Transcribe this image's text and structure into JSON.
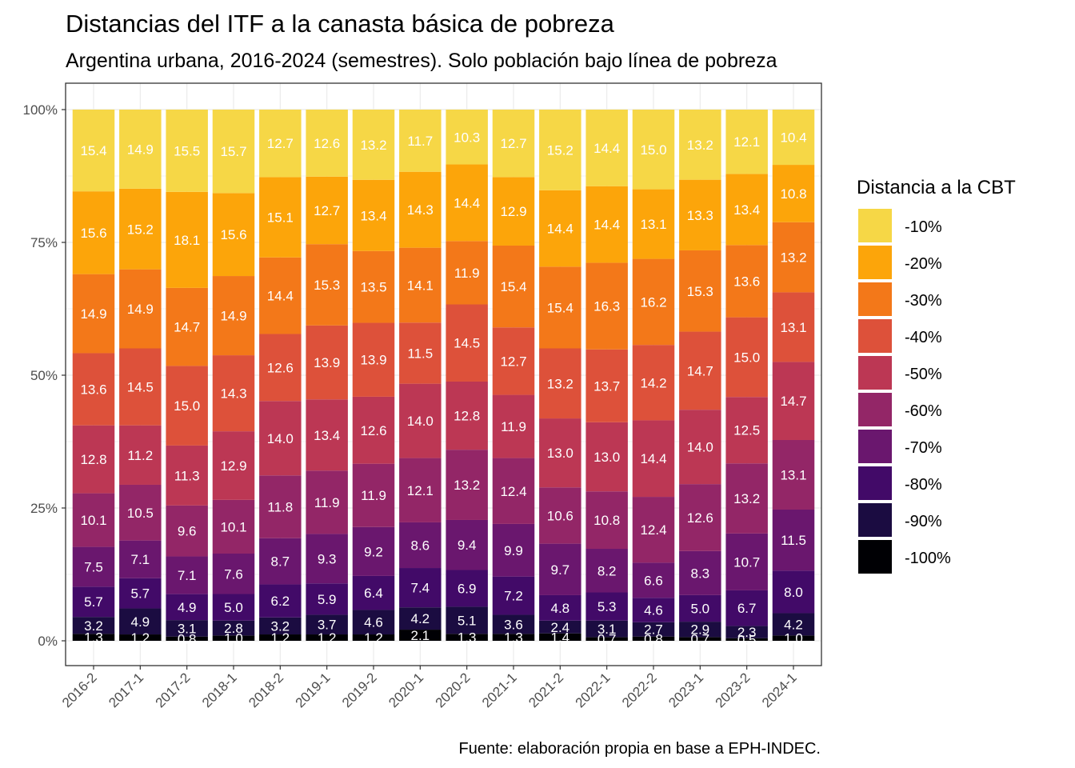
{
  "chart_data": {
    "type": "bar",
    "stacked": true,
    "normalized": true,
    "title": "Distancias del ITF a la canasta básica de pobreza",
    "subtitle": "Argentina urbana, 2016-2024 (semestres). Solo población bajo línea de pobreza",
    "caption": "Fuente: elaboración propia en base a EPH-INDEC.",
    "ylim": [
      0,
      100
    ],
    "y_ticks": [
      "0%",
      "25%",
      "50%",
      "75%",
      "100%"
    ],
    "grid": true,
    "categories": [
      "2016-2",
      "2017-1",
      "2017-2",
      "2018-1",
      "2018-2",
      "2019-1",
      "2019-2",
      "2020-1",
      "2020-2",
      "2021-1",
      "2021-2",
      "2022-1",
      "2022-2",
      "2023-1",
      "2023-2",
      "2024-1"
    ],
    "legend": {
      "title": "Distancia a la CBT",
      "placement": "right"
    },
    "series": [
      {
        "name": "-10%",
        "color": "#F6D746",
        "values": [
          15.4,
          14.9,
          15.5,
          15.7,
          12.7,
          12.6,
          13.2,
          11.7,
          10.3,
          12.7,
          15.2,
          14.4,
          15.0,
          13.2,
          12.1,
          10.4
        ]
      },
      {
        "name": "-20%",
        "color": "#FCA50A",
        "values": [
          15.6,
          15.2,
          18.1,
          15.6,
          15.1,
          12.7,
          13.4,
          14.3,
          14.4,
          12.9,
          14.4,
          14.4,
          13.1,
          13.3,
          13.4,
          10.8
        ]
      },
      {
        "name": "-30%",
        "color": "#F37819",
        "values": [
          14.9,
          14.9,
          14.7,
          14.9,
          14.4,
          15.3,
          13.5,
          14.1,
          11.9,
          15.4,
          15.4,
          16.3,
          16.2,
          15.3,
          13.6,
          13.2
        ]
      },
      {
        "name": "-40%",
        "color": "#DD513A",
        "values": [
          13.6,
          14.5,
          15.0,
          14.3,
          12.6,
          13.9,
          13.9,
          11.5,
          14.5,
          12.7,
          13.2,
          13.7,
          14.2,
          14.7,
          15.0,
          13.1
        ]
      },
      {
        "name": "-50%",
        "color": "#BC3754",
        "values": [
          12.8,
          11.2,
          11.3,
          12.9,
          14.0,
          13.4,
          12.6,
          14.0,
          12.8,
          11.9,
          13.0,
          13.0,
          14.4,
          14.0,
          12.5,
          14.7
        ]
      },
      {
        "name": "-60%",
        "color": "#932667",
        "values": [
          10.1,
          10.5,
          9.6,
          10.1,
          11.8,
          11.9,
          11.9,
          12.1,
          13.2,
          12.4,
          10.6,
          10.8,
          12.4,
          12.6,
          13.2,
          13.1
        ]
      },
      {
        "name": "-70%",
        "color": "#6A176E",
        "values": [
          7.5,
          7.1,
          7.1,
          7.6,
          8.7,
          9.3,
          9.2,
          8.6,
          9.4,
          9.9,
          9.7,
          8.2,
          6.6,
          8.3,
          10.7,
          11.5
        ]
      },
      {
        "name": "-80%",
        "color": "#420A68",
        "values": [
          5.7,
          5.7,
          4.9,
          5.0,
          6.2,
          5.9,
          6.4,
          7.4,
          6.9,
          7.2,
          4.8,
          5.3,
          4.6,
          5.0,
          6.7,
          8.0
        ]
      },
      {
        "name": "-90%",
        "color": "#1B0C41",
        "values": [
          3.2,
          4.9,
          3.1,
          2.8,
          3.2,
          3.7,
          4.6,
          4.2,
          5.1,
          3.6,
          2.4,
          3.1,
          2.7,
          2.9,
          2.3,
          4.2
        ]
      },
      {
        "name": "-100%",
        "color": "#000004",
        "values": [
          1.3,
          1.2,
          0.8,
          1.0,
          1.2,
          1.2,
          1.2,
          2.1,
          1.3,
          1.3,
          1.4,
          0.7,
          0.8,
          0.7,
          0.5,
          1.0
        ]
      }
    ]
  }
}
